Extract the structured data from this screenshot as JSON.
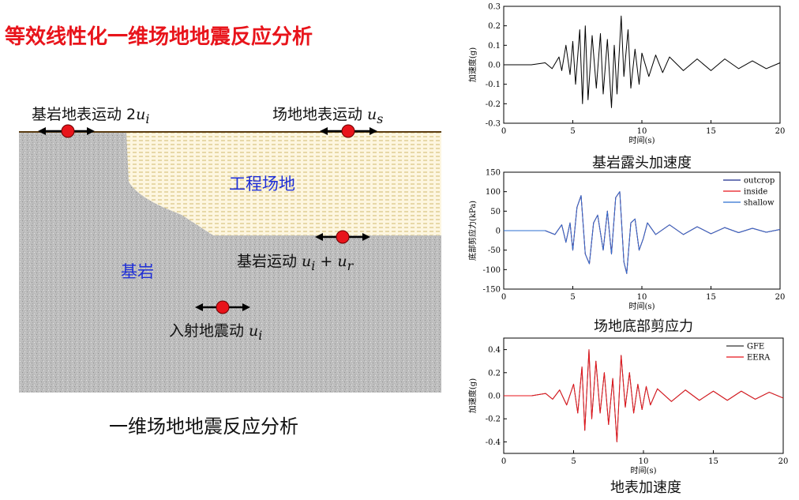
{
  "title": "等效线性化一维场地地震反应分析",
  "diagram": {
    "caption": "一维场地地震反应分析",
    "site_label": "工程场地",
    "rock_label": "基岩",
    "labels": {
      "outcrop": {
        "text": "基岩地表运动 2",
        "var": "u",
        "sub": "i"
      },
      "surface": {
        "text": "场地地表运动 ",
        "var": "u",
        "sub": "s"
      },
      "bedrock": {
        "text": "基岩运动 ",
        "var1": "u",
        "sub1": "i",
        "op": " + ",
        "var2": "u",
        "sub2": "r"
      },
      "incident": {
        "text": "入射地震动 ",
        "var": "u",
        "sub": "i"
      }
    },
    "colors": {
      "title": "#e8141b",
      "rock": "#b9b9b9",
      "site": "#fdf6e0",
      "label_blue": "#1f2fd6",
      "dot": "#e8141b"
    }
  },
  "chart_data": [
    {
      "type": "line",
      "caption": "基岩露头加速度",
      "xlabel": "时间(s)",
      "ylabel": "加速度(g)",
      "xlim": [
        0,
        20
      ],
      "ylim": [
        -0.3,
        0.3
      ],
      "xticks": [
        "0",
        "5",
        "10",
        "15",
        "20"
      ],
      "yticks": [
        "-0.3",
        "-0.2",
        "-0.1",
        "0.0",
        "0.1",
        "0.2",
        "0.3"
      ],
      "series": [
        {
          "color": "#000000",
          "points": [
            [
              0,
              0
            ],
            [
              2,
              0
            ],
            [
              3,
              0.01
            ],
            [
              3.5,
              -0.02
            ],
            [
              4,
              0.04
            ],
            [
              4.2,
              -0.03
            ],
            [
              4.5,
              0.1
            ],
            [
              4.8,
              -0.05
            ],
            [
              5,
              0.12
            ],
            [
              5.2,
              -0.1
            ],
            [
              5.5,
              0.18
            ],
            [
              5.7,
              -0.2
            ],
            [
              5.9,
              0.2
            ],
            [
              6.1,
              -0.18
            ],
            [
              6.4,
              0.15
            ],
            [
              6.7,
              -0.12
            ],
            [
              7,
              0.16
            ],
            [
              7.2,
              -0.15
            ],
            [
              7.5,
              0.13
            ],
            [
              7.8,
              -0.22
            ],
            [
              8,
              0.1
            ],
            [
              8.2,
              -0.15
            ],
            [
              8.5,
              0.25
            ],
            [
              8.7,
              -0.06
            ],
            [
              9,
              0.18
            ],
            [
              9.2,
              -0.12
            ],
            [
              9.5,
              0.08
            ],
            [
              9.8,
              -0.1
            ],
            [
              10,
              0.06
            ],
            [
              10.5,
              -0.06
            ],
            [
              11,
              0.05
            ],
            [
              11.5,
              -0.04
            ],
            [
              12,
              0.04
            ],
            [
              13,
              -0.03
            ],
            [
              14,
              0.03
            ],
            [
              15,
              -0.03
            ],
            [
              16,
              0.03
            ],
            [
              17,
              -0.02
            ],
            [
              18,
              0.02
            ],
            [
              19,
              -0.02
            ],
            [
              20,
              0.01
            ]
          ]
        }
      ]
    },
    {
      "type": "line",
      "caption": "场地底部剪应力",
      "xlabel": "时间(s)",
      "ylabel": "底部剪应力(kPa)",
      "xlim": [
        0,
        20
      ],
      "ylim": [
        -150,
        150
      ],
      "xticks": [
        "0",
        "5",
        "10",
        "15",
        "20"
      ],
      "yticks": [
        "-150",
        "-100",
        "-50",
        "0",
        "50",
        "100",
        "150"
      ],
      "legend": [
        "outcrop",
        "inside",
        "shallow"
      ],
      "series": [
        {
          "name": "outcrop",
          "color": "#1a2a8c",
          "points": [
            [
              0,
              0
            ],
            [
              3,
              0
            ],
            [
              3.7,
              -10
            ],
            [
              4.2,
              15
            ],
            [
              4.5,
              -30
            ],
            [
              4.8,
              20
            ],
            [
              5,
              -50
            ],
            [
              5.3,
              60
            ],
            [
              5.6,
              90
            ],
            [
              5.9,
              -60
            ],
            [
              6.2,
              -85
            ],
            [
              6.5,
              20
            ],
            [
              6.8,
              40
            ],
            [
              7.2,
              -50
            ],
            [
              7.5,
              50
            ],
            [
              7.8,
              -60
            ],
            [
              8.1,
              85
            ],
            [
              8.4,
              100
            ],
            [
              8.7,
              -80
            ],
            [
              8.9,
              -110
            ],
            [
              9.2,
              20
            ],
            [
              9.5,
              30
            ],
            [
              9.8,
              -50
            ],
            [
              10.1,
              -20
            ],
            [
              10.4,
              20
            ],
            [
              11,
              -10
            ],
            [
              12,
              15
            ],
            [
              13,
              -10
            ],
            [
              14,
              10
            ],
            [
              15,
              -8
            ],
            [
              16,
              8
            ],
            [
              17,
              -5
            ],
            [
              18,
              6
            ],
            [
              19,
              -4
            ],
            [
              20,
              3
            ]
          ]
        },
        {
          "name": "inside",
          "color": "#e8141b",
          "points": [
            [
              0,
              0
            ],
            [
              3,
              0
            ],
            [
              3.7,
              -10
            ],
            [
              4.2,
              15
            ],
            [
              4.5,
              -30
            ],
            [
              4.8,
              20
            ],
            [
              5,
              -50
            ],
            [
              5.3,
              60
            ],
            [
              5.6,
              90
            ],
            [
              5.9,
              -60
            ],
            [
              6.2,
              -85
            ],
            [
              6.5,
              20
            ],
            [
              6.8,
              40
            ],
            [
              7.2,
              -50
            ],
            [
              7.5,
              50
            ],
            [
              7.8,
              -60
            ],
            [
              8.1,
              85
            ],
            [
              8.4,
              100
            ],
            [
              8.7,
              -80
            ],
            [
              8.9,
              -110
            ],
            [
              9.2,
              20
            ],
            [
              9.5,
              30
            ],
            [
              9.8,
              -50
            ],
            [
              10.1,
              -20
            ],
            [
              10.4,
              20
            ],
            [
              11,
              -10
            ],
            [
              12,
              15
            ],
            [
              13,
              -10
            ],
            [
              14,
              10
            ],
            [
              15,
              -8
            ],
            [
              16,
              8
            ],
            [
              17,
              -5
            ],
            [
              18,
              6
            ],
            [
              19,
              -4
            ],
            [
              20,
              3
            ]
          ]
        },
        {
          "name": "shallow",
          "color": "#2c6fd1",
          "points": [
            [
              0,
              0
            ],
            [
              3,
              0
            ],
            [
              3.7,
              -10
            ],
            [
              4.2,
              15
            ],
            [
              4.5,
              -30
            ],
            [
              4.8,
              20
            ],
            [
              5,
              -50
            ],
            [
              5.3,
              60
            ],
            [
              5.6,
              90
            ],
            [
              5.9,
              -60
            ],
            [
              6.2,
              -85
            ],
            [
              6.5,
              20
            ],
            [
              6.8,
              40
            ],
            [
              7.2,
              -50
            ],
            [
              7.5,
              50
            ],
            [
              7.8,
              -60
            ],
            [
              8.1,
              85
            ],
            [
              8.4,
              100
            ],
            [
              8.7,
              -80
            ],
            [
              8.9,
              -110
            ],
            [
              9.2,
              20
            ],
            [
              9.5,
              30
            ],
            [
              9.8,
              -50
            ],
            [
              10.1,
              -20
            ],
            [
              10.4,
              20
            ],
            [
              11,
              -10
            ],
            [
              12,
              15
            ],
            [
              13,
              -10
            ],
            [
              14,
              10
            ],
            [
              15,
              -8
            ],
            [
              16,
              8
            ],
            [
              17,
              -5
            ],
            [
              18,
              6
            ],
            [
              19,
              -4
            ],
            [
              20,
              3
            ]
          ]
        }
      ]
    },
    {
      "type": "line",
      "caption": "地表加速度",
      "xlabel": "时间(s)",
      "ylabel": "加速度(g)",
      "xlim": [
        0,
        20
      ],
      "ylim": [
        -0.5,
        0.5
      ],
      "xticks": [
        "0",
        "5",
        "10",
        "15",
        "20"
      ],
      "yticks": [
        "-0.4",
        "-0.2",
        "0.0",
        "0.2",
        "0.4"
      ],
      "legend": [
        "GFE",
        "EERA"
      ],
      "series": [
        {
          "name": "GFE",
          "color": "#333333",
          "points": [
            [
              0,
              0
            ],
            [
              2,
              0
            ],
            [
              3,
              0.02
            ],
            [
              3.5,
              -0.03
            ],
            [
              4,
              0.05
            ],
            [
              4.5,
              -0.08
            ],
            [
              5,
              0.1
            ],
            [
              5.3,
              -0.15
            ],
            [
              5.6,
              0.25
            ],
            [
              5.8,
              -0.3
            ],
            [
              6.1,
              0.4
            ],
            [
              6.3,
              -0.2
            ],
            [
              6.6,
              0.3
            ],
            [
              6.9,
              -0.15
            ],
            [
              7.2,
              0.2
            ],
            [
              7.5,
              -0.25
            ],
            [
              7.8,
              0.15
            ],
            [
              8.1,
              -0.4
            ],
            [
              8.4,
              0.35
            ],
            [
              8.7,
              -0.1
            ],
            [
              9,
              0.2
            ],
            [
              9.3,
              -0.15
            ],
            [
              9.6,
              0.1
            ],
            [
              9.9,
              -0.12
            ],
            [
              10.2,
              0.08
            ],
            [
              10.5,
              -0.08
            ],
            [
              11,
              0.06
            ],
            [
              12,
              -0.05
            ],
            [
              13,
              0.05
            ],
            [
              14,
              -0.04
            ],
            [
              15,
              0.04
            ],
            [
              16,
              -0.04
            ],
            [
              17,
              0.04
            ],
            [
              18,
              -0.03
            ],
            [
              19,
              0.03
            ],
            [
              20,
              -0.02
            ]
          ]
        },
        {
          "name": "EERA",
          "color": "#e8141b",
          "points": [
            [
              0,
              0
            ],
            [
              2,
              0
            ],
            [
              3,
              0.02
            ],
            [
              3.5,
              -0.03
            ],
            [
              4,
              0.05
            ],
            [
              4.5,
              -0.08
            ],
            [
              5,
              0.1
            ],
            [
              5.3,
              -0.15
            ],
            [
              5.6,
              0.25
            ],
            [
              5.8,
              -0.3
            ],
            [
              6.1,
              0.4
            ],
            [
              6.3,
              -0.2
            ],
            [
              6.6,
              0.3
            ],
            [
              6.9,
              -0.15
            ],
            [
              7.2,
              0.2
            ],
            [
              7.5,
              -0.25
            ],
            [
              7.8,
              0.15
            ],
            [
              8.1,
              -0.4
            ],
            [
              8.4,
              0.35
            ],
            [
              8.7,
              -0.1
            ],
            [
              9,
              0.2
            ],
            [
              9.3,
              -0.15
            ],
            [
              9.6,
              0.1
            ],
            [
              9.9,
              -0.12
            ],
            [
              10.2,
              0.08
            ],
            [
              10.5,
              -0.08
            ],
            [
              11,
              0.06
            ],
            [
              12,
              -0.05
            ],
            [
              13,
              0.05
            ],
            [
              14,
              -0.04
            ],
            [
              15,
              0.04
            ],
            [
              16,
              -0.04
            ],
            [
              17,
              0.04
            ],
            [
              18,
              -0.03
            ],
            [
              19,
              0.03
            ],
            [
              20,
              -0.02
            ]
          ]
        }
      ]
    }
  ]
}
